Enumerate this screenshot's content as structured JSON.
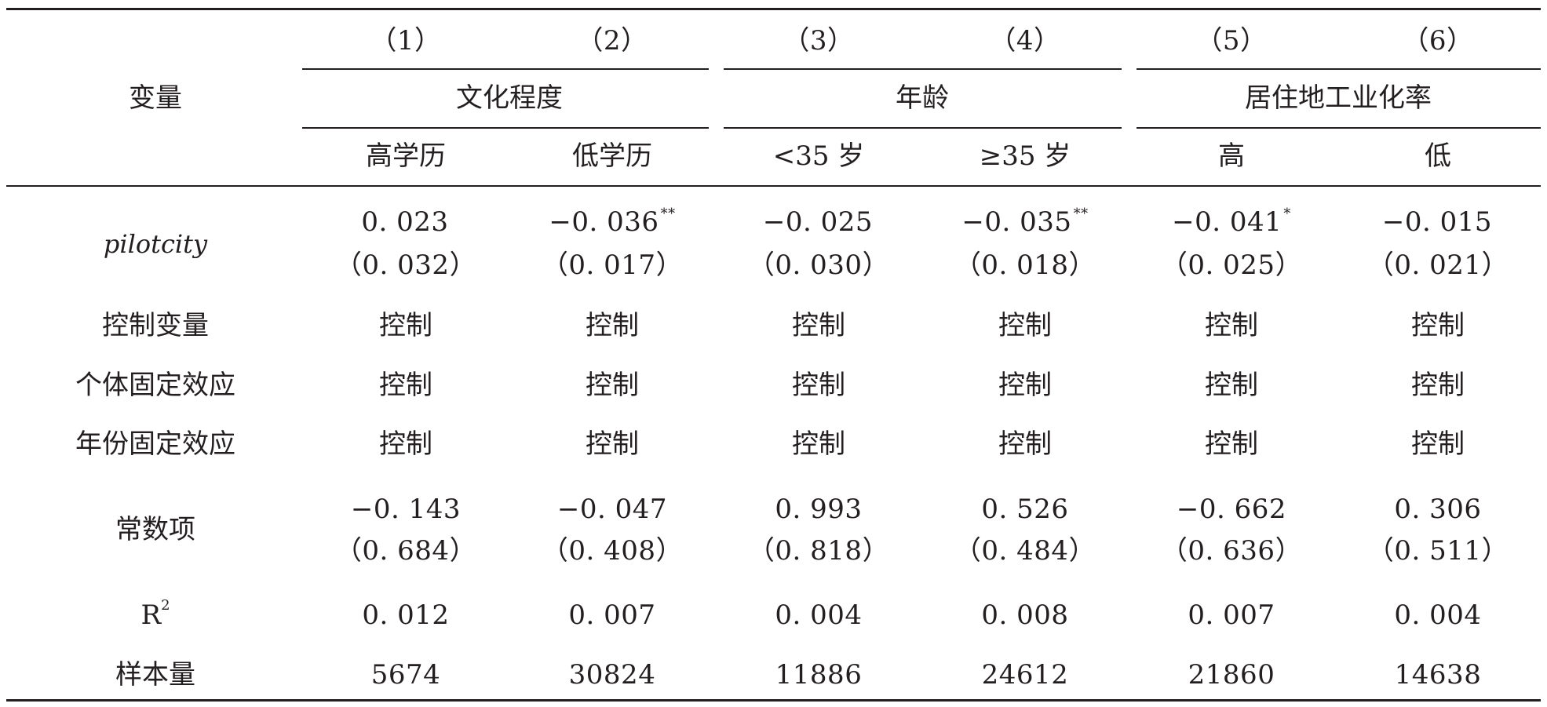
{
  "table": {
    "header": {
      "variable_label": "变量",
      "col_numbers": [
        "（1）",
        "（2）",
        "（3）",
        "（4）",
        "（5）",
        "（6）"
      ],
      "groups": [
        "文化程度",
        "年龄",
        "居住地工业化率"
      ],
      "subgroups": [
        "高学历",
        "低学历",
        "<35 岁",
        "≥35 岁",
        "高",
        "低"
      ]
    },
    "pilot": {
      "label": "pilotcity",
      "coefs": [
        "0. 023",
        "−0. 036",
        "−0. 025",
        "−0. 035",
        "−0. 041",
        "−0. 015"
      ],
      "stars": [
        "",
        "**",
        "",
        "**",
        "*",
        ""
      ],
      "ses": [
        "（0. 032）",
        "（0. 017）",
        "（0. 030）",
        "（0. 018）",
        "（0. 025）",
        "（0. 021）"
      ]
    },
    "control_rows": [
      {
        "label": "控制变量",
        "values": [
          "控制",
          "控制",
          "控制",
          "控制",
          "控制",
          "控制"
        ]
      },
      {
        "label": "个体固定效应",
        "values": [
          "控制",
          "控制",
          "控制",
          "控制",
          "控制",
          "控制"
        ]
      },
      {
        "label": "年份固定效应",
        "values": [
          "控制",
          "控制",
          "控制",
          "控制",
          "控制",
          "控制"
        ]
      }
    ],
    "constant": {
      "label": "常数项",
      "coefs": [
        "−0. 143",
        "−0. 047",
        "0. 993",
        "0. 526",
        "−0. 662",
        "0. 306"
      ],
      "ses": [
        "（0. 684）",
        "（0. 408）",
        "（0. 818）",
        "（0. 484）",
        "（0. 636）",
        "（0. 511）"
      ]
    },
    "r2": {
      "label_base": "R",
      "label_sup": "2",
      "values": [
        "0. 012",
        "0. 007",
        "0. 004",
        "0. 008",
        "0. 007",
        "0. 004"
      ]
    },
    "sample": {
      "label": "样本量",
      "values": [
        "5674",
        "30824",
        "11886",
        "24612",
        "21860",
        "14638"
      ]
    }
  }
}
